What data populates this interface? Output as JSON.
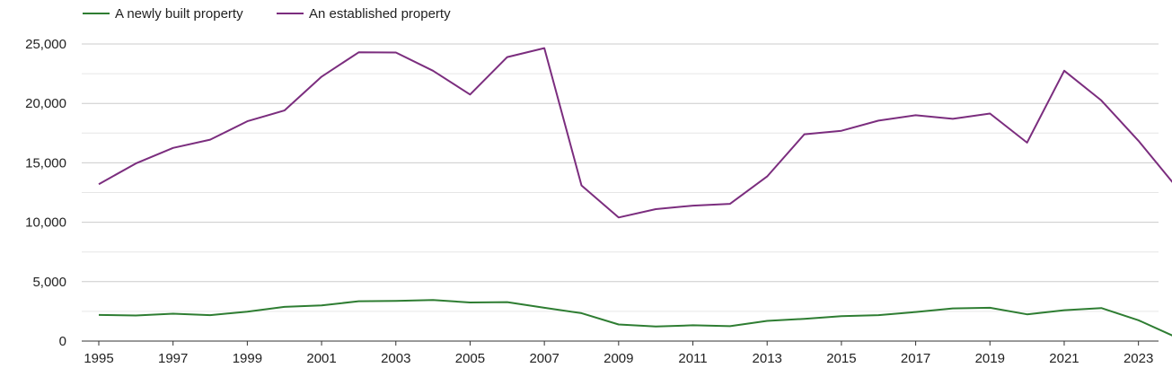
{
  "chart_data": {
    "type": "line",
    "title": "",
    "xlabel": "",
    "ylabel": "",
    "x": [
      1995,
      1996,
      1997,
      1998,
      1999,
      2000,
      2001,
      2002,
      2003,
      2004,
      2005,
      2006,
      2007,
      2008,
      2009,
      2010,
      2011,
      2012,
      2013,
      2014,
      2015,
      2016,
      2017,
      2018,
      2019,
      2020,
      2021,
      2022,
      2023,
      2024
    ],
    "x_tick_labels": [
      "1995",
      "1997",
      "1999",
      "2001",
      "2003",
      "2005",
      "2007",
      "2009",
      "2011",
      "2013",
      "2015",
      "2017",
      "2019",
      "2021",
      "2023"
    ],
    "y_tick_labels": [
      "0",
      "5,000",
      "10,000",
      "15,000",
      "20,000",
      "25,000"
    ],
    "ylim": [
      0,
      25000
    ],
    "grid": true,
    "legend_position": "top-left",
    "series": [
      {
        "name": "A newly built property",
        "color": "#2e7d32",
        "values": [
          2200,
          2150,
          2300,
          2180,
          2480,
          2880,
          3000,
          3350,
          3380,
          3450,
          3250,
          3280,
          2800,
          2350,
          1400,
          1220,
          1330,
          1250,
          1700,
          1870,
          2100,
          2180,
          2450,
          2750,
          2800,
          2250,
          2600,
          2780,
          1750,
          350
        ]
      },
      {
        "name": "An established property",
        "color": "#7b2d7e",
        "values": [
          13200,
          14950,
          16250,
          16950,
          18500,
          19400,
          22250,
          24300,
          24280,
          22750,
          20750,
          23900,
          24650,
          13100,
          10400,
          11100,
          11400,
          11550,
          13850,
          17400,
          17700,
          18550,
          19000,
          18700,
          19150,
          16700,
          22750,
          20250,
          16850,
          13050
        ]
      }
    ]
  }
}
